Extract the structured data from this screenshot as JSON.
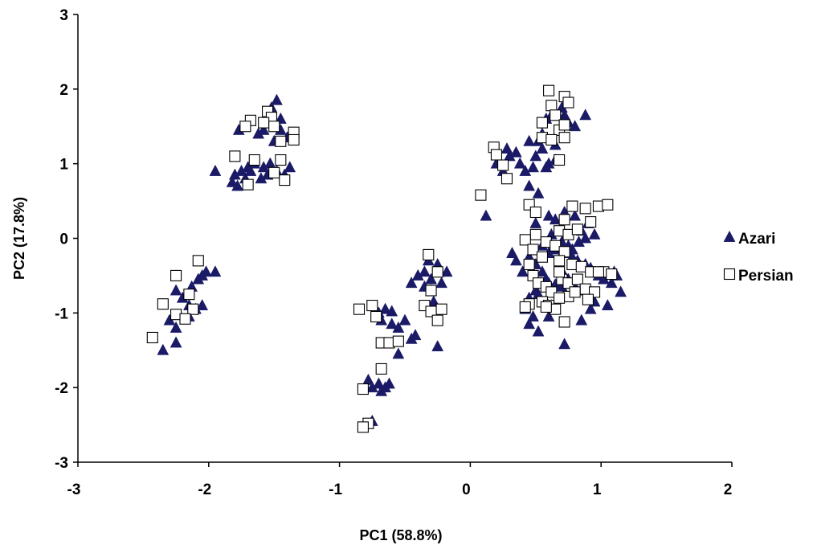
{
  "chart_data": {
    "type": "scatter",
    "title": "",
    "xlabel": "PC1 (58.8%)",
    "ylabel": "PC2 (17.8%)",
    "xlim": [
      -3,
      2
    ],
    "ylim": [
      -3,
      3
    ],
    "xticks": [
      -3,
      -2,
      -1,
      0,
      1,
      2
    ],
    "yticks": [
      -3,
      -2,
      -1,
      0,
      1,
      2,
      3
    ],
    "grid": false,
    "legend_position": "right",
    "series": [
      {
        "name": "Azari",
        "marker": "triangle",
        "color": "#1a1a66",
        "points": [
          [
            -1.48,
            1.85
          ],
          [
            -1.52,
            1.75
          ],
          [
            -1.72,
            1.5
          ],
          [
            -1.77,
            1.45
          ],
          [
            -1.45,
            1.6
          ],
          [
            -1.55,
            1.55
          ],
          [
            -1.58,
            1.45
          ],
          [
            -1.62,
            1.4
          ],
          [
            -1.45,
            1.45
          ],
          [
            -1.5,
            1.3
          ],
          [
            -1.4,
            1.35
          ],
          [
            -1.65,
            1.0
          ],
          [
            -1.7,
            0.95
          ],
          [
            -1.75,
            0.9
          ],
          [
            -1.8,
            0.85
          ],
          [
            -1.72,
            0.8
          ],
          [
            -1.68,
            0.9
          ],
          [
            -1.58,
            0.95
          ],
          [
            -1.53,
            1.0
          ],
          [
            -1.48,
            0.9
          ],
          [
            -1.42,
            0.85
          ],
          [
            -1.38,
            0.95
          ],
          [
            -1.6,
            0.8
          ],
          [
            -1.55,
            0.85
          ],
          [
            -1.95,
            0.9
          ],
          [
            -1.82,
            0.75
          ],
          [
            -1.78,
            0.7
          ],
          [
            -2.25,
            -0.7
          ],
          [
            -2.2,
            -0.8
          ],
          [
            -2.15,
            -0.9
          ],
          [
            -2.1,
            -0.95
          ],
          [
            -2.05,
            -0.5
          ],
          [
            -2.02,
            -0.45
          ],
          [
            -1.95,
            -0.45
          ],
          [
            -2.08,
            -0.55
          ],
          [
            -2.13,
            -0.65
          ],
          [
            -2.3,
            -1.1
          ],
          [
            -2.25,
            -1.2
          ],
          [
            -2.35,
            -1.5
          ],
          [
            -2.25,
            -1.4
          ],
          [
            -2.05,
            -0.9
          ],
          [
            -2.15,
            -1.05
          ],
          [
            -0.78,
            -1.9
          ],
          [
            -0.75,
            -2.0
          ],
          [
            -0.7,
            -1.95
          ],
          [
            -0.68,
            -2.05
          ],
          [
            -0.65,
            -2.0
          ],
          [
            -0.62,
            -1.95
          ],
          [
            -0.7,
            -1.0
          ],
          [
            -0.65,
            -0.95
          ],
          [
            -0.6,
            -0.98
          ],
          [
            -0.68,
            -1.1
          ],
          [
            -0.6,
            -1.15
          ],
          [
            -0.55,
            -1.2
          ],
          [
            -0.72,
            -1.05
          ],
          [
            -0.75,
            -2.45
          ],
          [
            -0.4,
            -0.5
          ],
          [
            -0.35,
            -0.45
          ],
          [
            -0.32,
            -0.3
          ],
          [
            -0.3,
            -0.55
          ],
          [
            -0.25,
            -0.35
          ],
          [
            -0.22,
            -0.6
          ],
          [
            -0.18,
            -0.45
          ],
          [
            -0.35,
            -0.65
          ],
          [
            -0.3,
            -0.7
          ],
          [
            -0.28,
            -0.85
          ],
          [
            -0.45,
            -0.6
          ],
          [
            -0.42,
            -1.3
          ],
          [
            -0.45,
            -1.35
          ],
          [
            -0.5,
            -1.1
          ],
          [
            -0.25,
            -1.45
          ],
          [
            -0.55,
            -1.55
          ],
          [
            -0.27,
            -0.93
          ],
          [
            0.45,
            0.7
          ],
          [
            0.52,
            0.6
          ],
          [
            0.45,
            1.3
          ],
          [
            0.5,
            1.1
          ],
          [
            0.55,
            1.2
          ],
          [
            0.6,
            1.0
          ],
          [
            0.48,
            0.95
          ],
          [
            0.42,
            0.9
          ],
          [
            0.38,
            1.0
          ],
          [
            0.58,
            1.6
          ],
          [
            0.62,
            1.65
          ],
          [
            0.7,
            1.75
          ],
          [
            0.75,
            1.55
          ],
          [
            0.8,
            1.5
          ],
          [
            0.88,
            1.65
          ],
          [
            0.72,
            1.65
          ],
          [
            0.65,
            1.25
          ],
          [
            0.55,
            1.4
          ],
          [
            0.52,
            1.3
          ],
          [
            0.65,
            1.05
          ],
          [
            0.3,
            1.1
          ],
          [
            0.28,
            1.2
          ],
          [
            0.35,
            1.15
          ],
          [
            0.25,
            0.9
          ],
          [
            0.12,
            0.3
          ],
          [
            0.2,
            1.0
          ],
          [
            0.58,
            0.95
          ],
          [
            0.5,
            0.2
          ],
          [
            0.6,
            0.3
          ],
          [
            0.65,
            0.25
          ],
          [
            0.72,
            0.35
          ],
          [
            0.8,
            0.3
          ],
          [
            0.85,
            0.1
          ],
          [
            0.9,
            0.2
          ],
          [
            0.95,
            0.05
          ],
          [
            0.55,
            -0.1
          ],
          [
            0.6,
            -0.2
          ],
          [
            0.65,
            -0.15
          ],
          [
            0.7,
            -0.05
          ],
          [
            0.75,
            -0.1
          ],
          [
            0.78,
            -0.25
          ],
          [
            0.82,
            -0.3
          ],
          [
            0.88,
            -0.35
          ],
          [
            0.92,
            -0.4
          ],
          [
            0.98,
            -0.5
          ],
          [
            1.02,
            -0.55
          ],
          [
            1.1,
            -0.45
          ],
          [
            1.12,
            -0.5
          ],
          [
            1.15,
            -0.72
          ],
          [
            0.5,
            -0.7
          ],
          [
            0.52,
            -0.75
          ],
          [
            0.58,
            -0.85
          ],
          [
            0.62,
            -0.9
          ],
          [
            0.45,
            -0.8
          ],
          [
            0.42,
            -0.95
          ],
          [
            0.48,
            -1.05
          ],
          [
            0.52,
            -1.25
          ],
          [
            0.45,
            -1.15
          ],
          [
            0.68,
            -0.45
          ],
          [
            0.72,
            -0.5
          ],
          [
            0.75,
            -0.55
          ],
          [
            0.78,
            -0.6
          ],
          [
            0.8,
            -0.65
          ],
          [
            0.4,
            -0.45
          ],
          [
            0.35,
            -0.3
          ],
          [
            0.32,
            -0.2
          ],
          [
            0.6,
            -0.6
          ],
          [
            0.65,
            -0.62
          ],
          [
            0.7,
            -0.65
          ],
          [
            0.85,
            -0.7
          ],
          [
            0.9,
            -0.75
          ],
          [
            0.95,
            -0.85
          ],
          [
            1.05,
            -0.9
          ],
          [
            0.72,
            -1.42
          ],
          [
            0.55,
            -0.45
          ],
          [
            0.5,
            -0.35
          ],
          [
            0.45,
            -0.25
          ],
          [
            0.92,
            -0.95
          ],
          [
            0.85,
            -1.1
          ],
          [
            0.6,
            -1.05
          ],
          [
            0.65,
            -0.95
          ],
          [
            0.72,
            -0.2
          ],
          [
            0.78,
            -0.15
          ],
          [
            0.83,
            -0.05
          ],
          [
            0.88,
            0.0
          ],
          [
            0.62,
            0.05
          ],
          [
            0.68,
            -0.28
          ],
          [
            0.58,
            -0.55
          ],
          [
            1.08,
            -0.6
          ]
        ]
      },
      {
        "name": "Persian",
        "marker": "square",
        "color": "#ffffff",
        "points": [
          [
            -1.55,
            1.7
          ],
          [
            -1.68,
            1.58
          ],
          [
            -1.52,
            1.62
          ],
          [
            -1.58,
            1.55
          ],
          [
            -1.5,
            1.5
          ],
          [
            -1.35,
            1.42
          ],
          [
            -1.35,
            1.32
          ],
          [
            -1.45,
            1.3
          ],
          [
            -1.72,
            1.5
          ],
          [
            -1.65,
            1.05
          ],
          [
            -1.8,
            1.1
          ],
          [
            -1.45,
            1.05
          ],
          [
            -1.7,
            0.72
          ],
          [
            -1.42,
            0.78
          ],
          [
            -1.5,
            0.88
          ],
          [
            -2.08,
            -0.3
          ],
          [
            -2.25,
            -0.5
          ],
          [
            -2.15,
            -0.75
          ],
          [
            -2.12,
            -0.95
          ],
          [
            -2.35,
            -0.88
          ],
          [
            -2.25,
            -1.02
          ],
          [
            -2.18,
            -1.08
          ],
          [
            -2.43,
            -1.33
          ],
          [
            -0.85,
            -0.95
          ],
          [
            -0.75,
            -0.9
          ],
          [
            -0.72,
            -1.05
          ],
          [
            -0.68,
            -1.4
          ],
          [
            -0.62,
            -1.4
          ],
          [
            -0.55,
            -1.38
          ],
          [
            -0.68,
            -1.75
          ],
          [
            -0.82,
            -2.02
          ],
          [
            -0.78,
            -2.48
          ],
          [
            -0.82,
            -2.53
          ],
          [
            -0.32,
            -0.22
          ],
          [
            -0.25,
            -0.45
          ],
          [
            -0.3,
            -0.7
          ],
          [
            -0.35,
            -0.9
          ],
          [
            -0.3,
            -0.98
          ],
          [
            -0.22,
            -0.95
          ],
          [
            -0.25,
            -1.1
          ],
          [
            0.6,
            1.98
          ],
          [
            0.72,
            1.9
          ],
          [
            0.62,
            1.78
          ],
          [
            0.75,
            1.82
          ],
          [
            0.65,
            1.65
          ],
          [
            0.55,
            1.55
          ],
          [
            0.68,
            1.45
          ],
          [
            0.72,
            1.52
          ],
          [
            0.55,
            1.35
          ],
          [
            0.62,
            1.32
          ],
          [
            0.72,
            1.35
          ],
          [
            0.18,
            1.22
          ],
          [
            0.2,
            1.12
          ],
          [
            0.25,
            0.98
          ],
          [
            0.28,
            0.8
          ],
          [
            0.68,
            1.05
          ],
          [
            0.08,
            0.58
          ],
          [
            0.45,
            0.45
          ],
          [
            0.5,
            0.35
          ],
          [
            0.78,
            0.43
          ],
          [
            0.88,
            0.4
          ],
          [
            0.98,
            0.43
          ],
          [
            1.05,
            0.45
          ],
          [
            0.72,
            0.25
          ],
          [
            0.68,
            0.1
          ],
          [
            0.75,
            0.05
          ],
          [
            0.92,
            0.22
          ],
          [
            0.82,
            0.12
          ],
          [
            0.5,
            0.05
          ],
          [
            0.58,
            -0.05
          ],
          [
            0.65,
            -0.1
          ],
          [
            0.72,
            -0.18
          ],
          [
            0.42,
            -0.02
          ],
          [
            0.48,
            -0.15
          ],
          [
            0.55,
            -0.25
          ],
          [
            0.68,
            -0.3
          ],
          [
            0.78,
            -0.35
          ],
          [
            0.85,
            -0.38
          ],
          [
            0.92,
            -0.45
          ],
          [
            1.02,
            -0.45
          ],
          [
            1.08,
            -0.48
          ],
          [
            0.45,
            -0.35
          ],
          [
            0.48,
            -0.5
          ],
          [
            0.52,
            -0.6
          ],
          [
            0.58,
            -0.65
          ],
          [
            0.62,
            -0.72
          ],
          [
            0.7,
            -0.55
          ],
          [
            0.75,
            -0.6
          ],
          [
            0.82,
            -0.55
          ],
          [
            0.88,
            -0.68
          ],
          [
            0.95,
            -0.72
          ],
          [
            0.98,
            -0.45
          ],
          [
            0.55,
            -0.85
          ],
          [
            0.6,
            -0.9
          ],
          [
            0.45,
            -0.88
          ],
          [
            0.42,
            -0.92
          ],
          [
            0.65,
            -0.95
          ],
          [
            0.58,
            -0.92
          ],
          [
            0.72,
            -1.12
          ],
          [
            0.9,
            -0.82
          ],
          [
            0.75,
            -0.78
          ],
          [
            0.8,
            -0.72
          ],
          [
            0.68,
            -0.8
          ],
          [
            0.68,
            -0.45
          ]
        ]
      }
    ]
  }
}
